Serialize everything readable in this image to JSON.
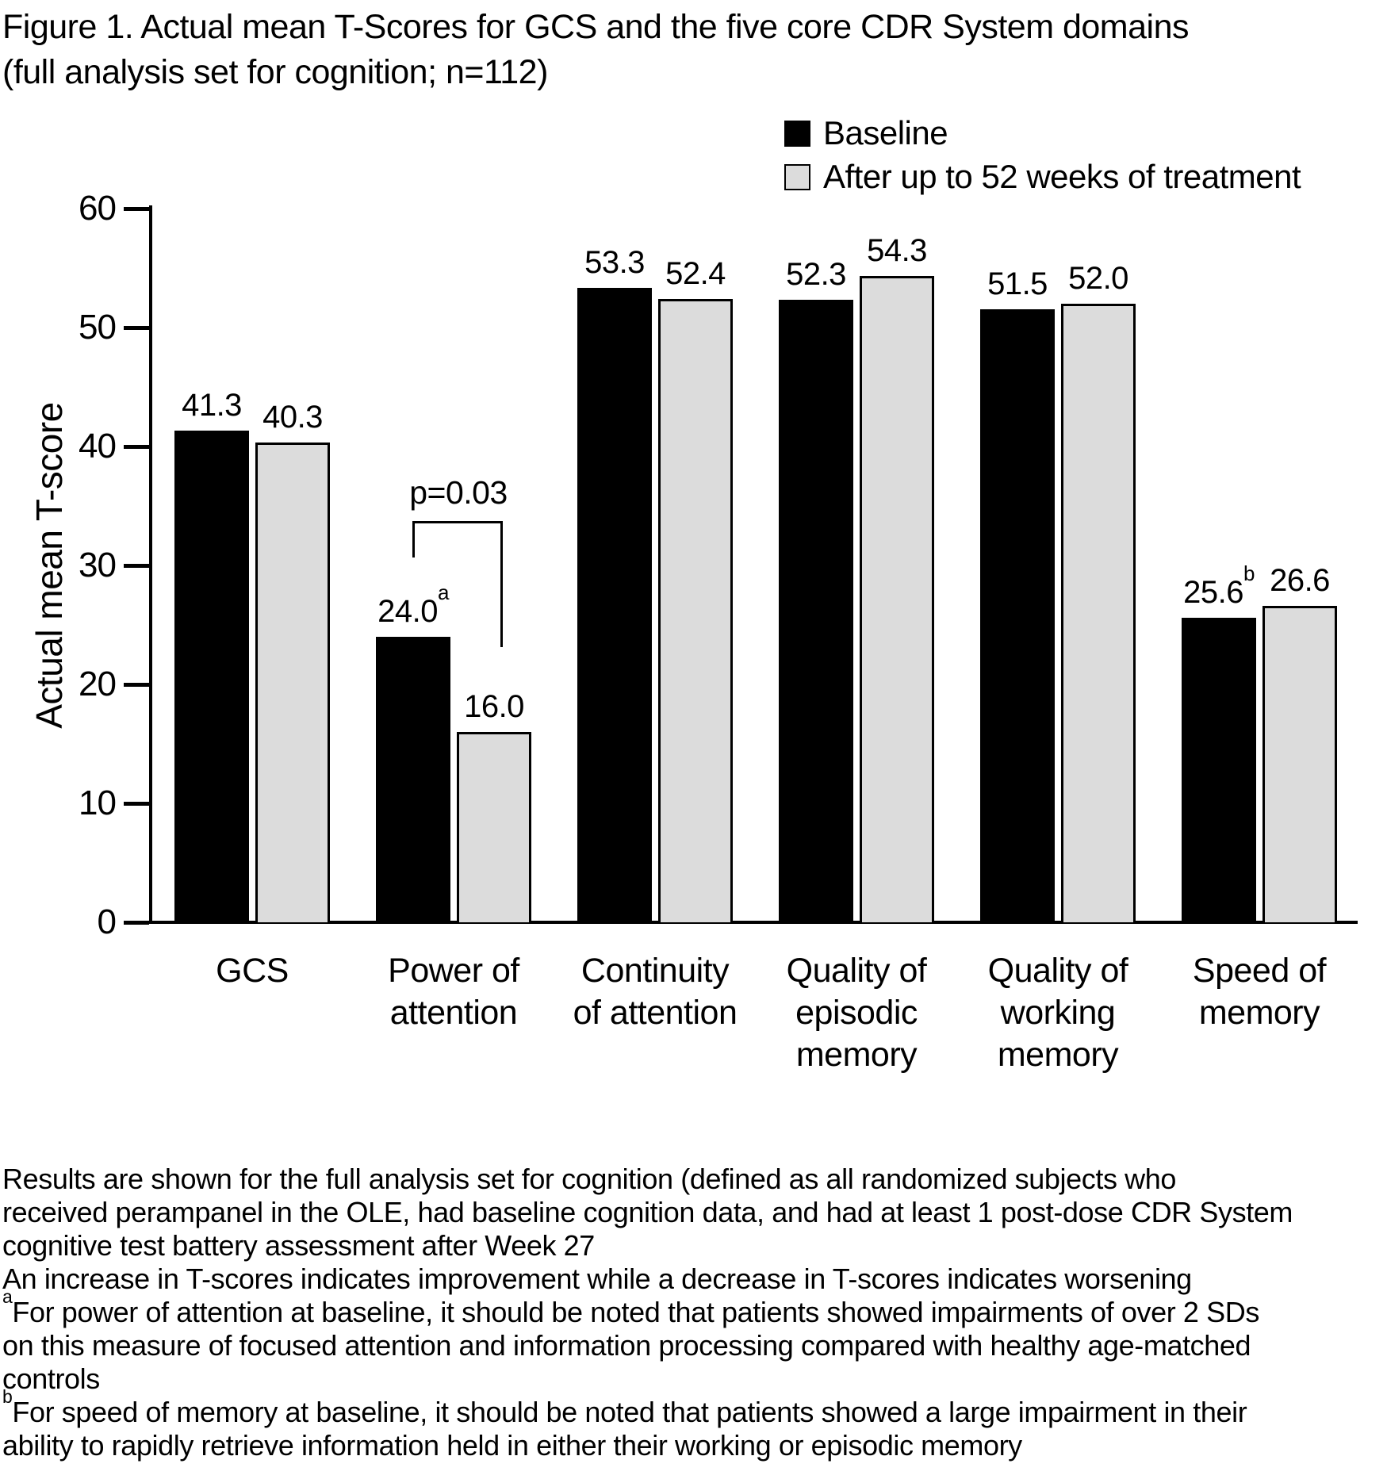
{
  "figure": {
    "title_line1": "Figure 1. Actual mean T-Scores for GCS and the five core CDR System domains",
    "title_line2": "(full analysis set for cognition; n=112)"
  },
  "chart_data": {
    "type": "bar",
    "title": "Figure 1. Actual mean T-Scores for GCS and the five core CDR System domains (full analysis set for cognition; n=112)",
    "xlabel": "",
    "ylabel": "Actual mean T-score",
    "ylim": [
      0,
      60
    ],
    "yticks": [
      0,
      10,
      20,
      30,
      40,
      50,
      60
    ],
    "grid": false,
    "legend_position": "top-right",
    "categories": [
      "GCS",
      "Power of attention",
      "Continuity of attention",
      "Quality of episodic memory",
      "Quality of working memory",
      "Speed of memory"
    ],
    "category_lines": [
      [
        "GCS"
      ],
      [
        "Power of",
        "attention"
      ],
      [
        "Continuity",
        "of attention"
      ],
      [
        "Quality of",
        "episodic",
        "memory"
      ],
      [
        "Quality of",
        "working",
        "memory"
      ],
      [
        "Speed of",
        "memory"
      ]
    ],
    "series": [
      {
        "name": "Baseline",
        "color": "#000000",
        "values": [
          41.3,
          24.0,
          53.3,
          52.3,
          51.5,
          25.6
        ],
        "labels": [
          "41.3",
          "24.0",
          "53.3",
          "52.3",
          "51.5",
          "25.6"
        ],
        "label_sups": [
          "",
          "a",
          "",
          "",
          "",
          "b"
        ]
      },
      {
        "name": "After up to 52 weeks of treatment",
        "color": "#dcdcdc",
        "values": [
          40.3,
          16.0,
          52.4,
          54.3,
          52.0,
          26.6
        ],
        "labels": [
          "40.3",
          "16.0",
          "52.4",
          "54.3",
          "52.0",
          "26.6"
        ],
        "label_sups": [
          "",
          "",
          "",
          "",
          "",
          ""
        ]
      }
    ],
    "annotation": {
      "text": "p=0.03",
      "category": "Power of attention",
      "between": [
        "Baseline",
        "After up to 52 weeks of treatment"
      ]
    }
  },
  "footnotes": {
    "p1": {
      "lines": [
        "Results are shown for the full analysis set for cognition (defined as all randomized subjects who",
        "received perampanel in the OLE, had baseline cognition data, and had at least 1 post-dose CDR System",
        "cognitive test battery assessment after Week 27"
      ]
    },
    "p2": {
      "lines": [
        "An increase in T-scores indicates improvement while a decrease in T-scores indicates worsening"
      ]
    },
    "p3": {
      "sup": "a",
      "lines": [
        "For power of attention at baseline, it should be noted that patients showed impairments of over 2 SDs",
        "on this measure of focused attention and information processing compared with healthy age-matched",
        "controls"
      ]
    },
    "p4": {
      "sup": "b",
      "lines": [
        "For speed of memory at baseline, it should be noted that  patients showed a large impairment in their",
        "ability to rapidly retrieve information held in either their working or episodic memory"
      ]
    }
  }
}
